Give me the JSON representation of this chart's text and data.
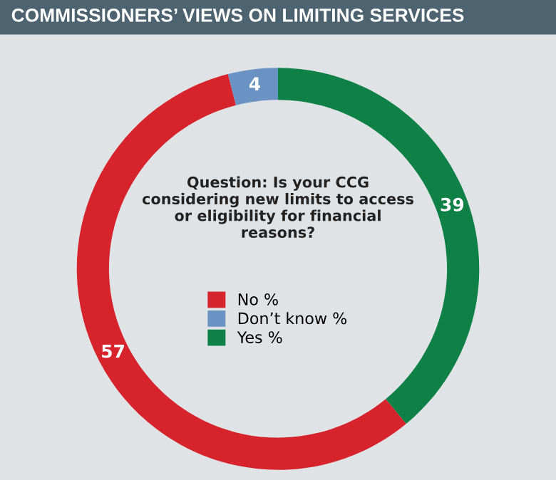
{
  "chart_data": {
    "type": "donut",
    "title": "COMMISSIONERS’ VIEWS ON LIMITING SERVICES",
    "subtitle": "Question: Is your CCG considering new limits to access or eligibility for financial reasons?",
    "categories": [
      "No %",
      "Don’t know %",
      "Yes %"
    ],
    "values": [
      57,
      4,
      39
    ],
    "colors": [
      "#d7242c",
      "#6a93c4",
      "#0f8046"
    ],
    "data_labels": true,
    "legend": "center"
  }
}
